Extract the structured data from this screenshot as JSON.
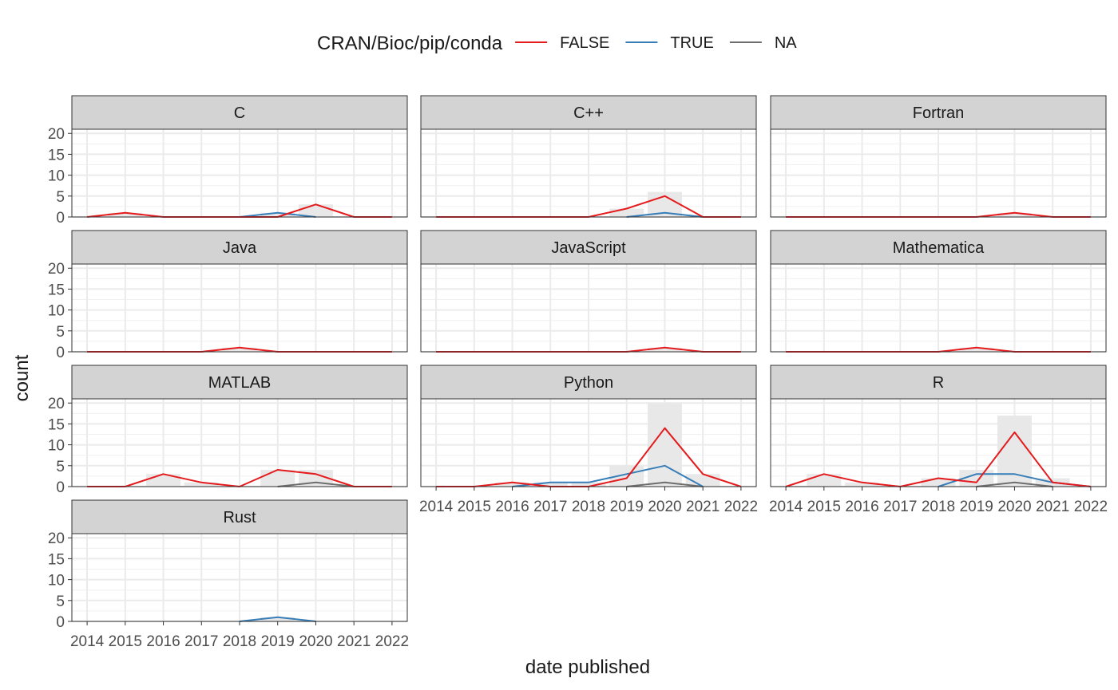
{
  "chart_data": {
    "type": "line",
    "facet_by": "language",
    "xlabel": "date published",
    "ylabel": "count",
    "x_ticks": [
      "2014",
      "2015",
      "2016",
      "2017",
      "2018",
      "2019",
      "2020",
      "2021",
      "2022"
    ],
    "y_ticks": [
      "0",
      "5",
      "10",
      "15",
      "20"
    ],
    "xlim": [
      2013.6,
      2022.4
    ],
    "ylim": [
      0,
      21
    ],
    "grid": true,
    "legend": {
      "title": "CRAN/Bioc/pip/conda",
      "position": "top",
      "entries": [
        {
          "label": "FALSE",
          "color": "#e41a1c"
        },
        {
          "label": "TRUE",
          "color": "#377eb8"
        },
        {
          "label": "NA",
          "color": "#6e6e6e"
        }
      ]
    },
    "bar_color": "#e8e8e8",
    "panels": [
      {
        "label": "C",
        "bars": [
          {
            "x": 2015,
            "y": 1
          },
          {
            "x": 2019,
            "y": 1
          },
          {
            "x": 2020,
            "y": 3
          }
        ],
        "series": {
          "FALSE": [
            [
              2014,
              0
            ],
            [
              2015,
              1
            ],
            [
              2016,
              0
            ],
            [
              2017,
              0
            ],
            [
              2018,
              0
            ],
            [
              2019,
              0
            ],
            [
              2020,
              3
            ],
            [
              2021,
              0
            ],
            [
              2022,
              0
            ]
          ],
          "TRUE": [
            [
              2018,
              0
            ],
            [
              2019,
              1
            ],
            [
              2020,
              0
            ]
          ],
          "NA": []
        }
      },
      {
        "label": "C++",
        "bars": [
          {
            "x": 2019,
            "y": 2
          },
          {
            "x": 2020,
            "y": 6
          }
        ],
        "series": {
          "FALSE": [
            [
              2014,
              0
            ],
            [
              2015,
              0
            ],
            [
              2016,
              0
            ],
            [
              2017,
              0
            ],
            [
              2018,
              0
            ],
            [
              2019,
              2
            ],
            [
              2020,
              5
            ],
            [
              2021,
              0
            ],
            [
              2022,
              0
            ]
          ],
          "TRUE": [
            [
              2019,
              0
            ],
            [
              2020,
              1
            ],
            [
              2021,
              0
            ]
          ],
          "NA": []
        }
      },
      {
        "label": "Fortran",
        "bars": [
          {
            "x": 2020,
            "y": 1
          }
        ],
        "series": {
          "FALSE": [
            [
              2014,
              0
            ],
            [
              2015,
              0
            ],
            [
              2016,
              0
            ],
            [
              2017,
              0
            ],
            [
              2018,
              0
            ],
            [
              2019,
              0
            ],
            [
              2020,
              1
            ],
            [
              2021,
              0
            ],
            [
              2022,
              0
            ]
          ],
          "TRUE": [],
          "NA": []
        }
      },
      {
        "label": "Java",
        "bars": [
          {
            "x": 2018,
            "y": 1
          }
        ],
        "series": {
          "FALSE": [
            [
              2014,
              0
            ],
            [
              2015,
              0
            ],
            [
              2016,
              0
            ],
            [
              2017,
              0
            ],
            [
              2018,
              1
            ],
            [
              2019,
              0
            ],
            [
              2020,
              0
            ],
            [
              2021,
              0
            ],
            [
              2022,
              0
            ]
          ],
          "TRUE": [],
          "NA": []
        }
      },
      {
        "label": "JavaScript",
        "bars": [
          {
            "x": 2020,
            "y": 1
          }
        ],
        "series": {
          "FALSE": [
            [
              2014,
              0
            ],
            [
              2015,
              0
            ],
            [
              2016,
              0
            ],
            [
              2017,
              0
            ],
            [
              2018,
              0
            ],
            [
              2019,
              0
            ],
            [
              2020,
              1
            ],
            [
              2021,
              0
            ],
            [
              2022,
              0
            ]
          ],
          "TRUE": [],
          "NA": []
        }
      },
      {
        "label": "Mathematica",
        "bars": [
          {
            "x": 2019,
            "y": 1
          }
        ],
        "series": {
          "FALSE": [
            [
              2014,
              0
            ],
            [
              2015,
              0
            ],
            [
              2016,
              0
            ],
            [
              2017,
              0
            ],
            [
              2018,
              0
            ],
            [
              2019,
              1
            ],
            [
              2020,
              0
            ],
            [
              2021,
              0
            ],
            [
              2022,
              0
            ]
          ],
          "TRUE": [],
          "NA": []
        }
      },
      {
        "label": "MATLAB",
        "bars": [
          {
            "x": 2016,
            "y": 3
          },
          {
            "x": 2017,
            "y": 1
          },
          {
            "x": 2019,
            "y": 4
          },
          {
            "x": 2020,
            "y": 4
          }
        ],
        "series": {
          "FALSE": [
            [
              2014,
              0
            ],
            [
              2015,
              0
            ],
            [
              2016,
              3
            ],
            [
              2017,
              1
            ],
            [
              2018,
              0
            ],
            [
              2019,
              4
            ],
            [
              2020,
              3
            ],
            [
              2021,
              0
            ],
            [
              2022,
              0
            ]
          ],
          "TRUE": [],
          "NA": [
            [
              2019,
              0
            ],
            [
              2020,
              1
            ],
            [
              2021,
              0
            ]
          ]
        }
      },
      {
        "label": "Python",
        "bars": [
          {
            "x": 2016,
            "y": 1
          },
          {
            "x": 2017,
            "y": 1
          },
          {
            "x": 2018,
            "y": 1
          },
          {
            "x": 2019,
            "y": 5
          },
          {
            "x": 2020,
            "y": 20
          },
          {
            "x": 2021,
            "y": 3
          }
        ],
        "series": {
          "FALSE": [
            [
              2014,
              0
            ],
            [
              2015,
              0
            ],
            [
              2016,
              1
            ],
            [
              2017,
              0
            ],
            [
              2018,
              0
            ],
            [
              2019,
              2
            ],
            [
              2020,
              14
            ],
            [
              2021,
              3
            ],
            [
              2022,
              0
            ]
          ],
          "TRUE": [
            [
              2016,
              0
            ],
            [
              2017,
              1
            ],
            [
              2018,
              1
            ],
            [
              2019,
              3
            ],
            [
              2020,
              5
            ],
            [
              2021,
              0
            ]
          ],
          "NA": [
            [
              2019,
              0
            ],
            [
              2020,
              1
            ],
            [
              2021,
              0
            ]
          ]
        }
      },
      {
        "label": "R",
        "bars": [
          {
            "x": 2015,
            "y": 3
          },
          {
            "x": 2016,
            "y": 1
          },
          {
            "x": 2018,
            "y": 2
          },
          {
            "x": 2019,
            "y": 4
          },
          {
            "x": 2020,
            "y": 17
          },
          {
            "x": 2021,
            "y": 2
          }
        ],
        "series": {
          "FALSE": [
            [
              2014,
              0
            ],
            [
              2015,
              3
            ],
            [
              2016,
              1
            ],
            [
              2017,
              0
            ],
            [
              2018,
              2
            ],
            [
              2019,
              1
            ],
            [
              2020,
              13
            ],
            [
              2021,
              1
            ],
            [
              2022,
              0
            ]
          ],
          "TRUE": [
            [
              2018,
              0
            ],
            [
              2019,
              3
            ],
            [
              2020,
              3
            ],
            [
              2021,
              1
            ],
            [
              2022,
              0
            ]
          ],
          "NA": [
            [
              2019,
              0
            ],
            [
              2020,
              1
            ],
            [
              2021,
              0
            ]
          ]
        }
      },
      {
        "label": "Rust",
        "bars": [
          {
            "x": 2019,
            "y": 1
          }
        ],
        "series": {
          "FALSE": [],
          "TRUE": [
            [
              2018,
              0
            ],
            [
              2019,
              1
            ],
            [
              2020,
              0
            ]
          ],
          "NA": []
        }
      }
    ]
  }
}
